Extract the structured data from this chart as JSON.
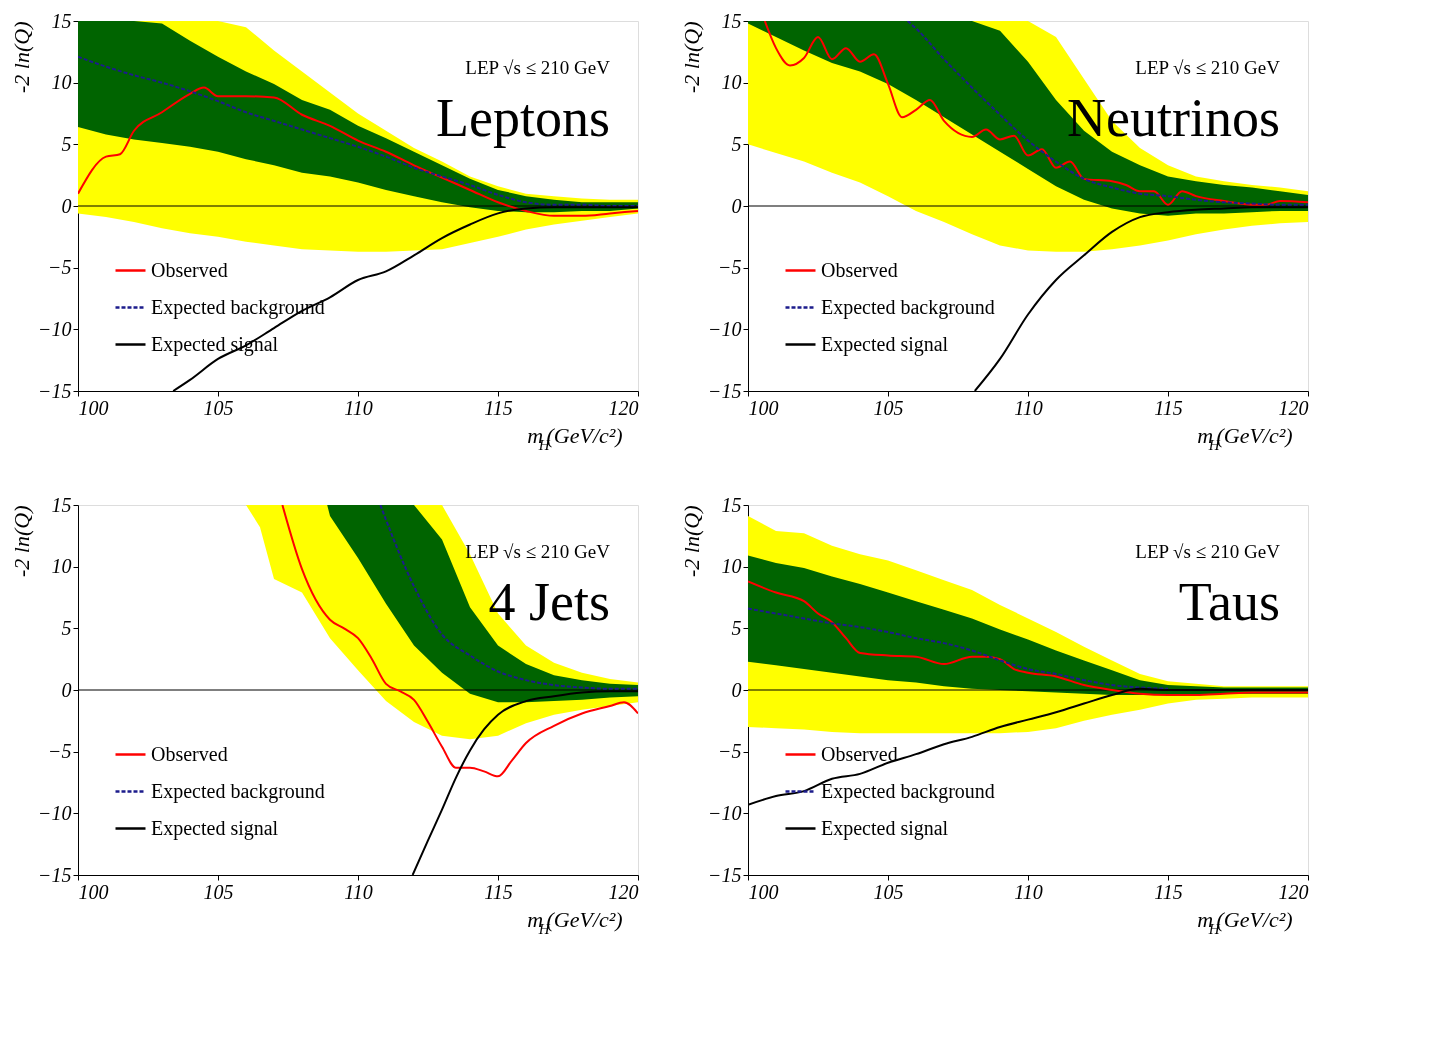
{
  "chart_data": [
    {
      "type": "line",
      "title": "Leptons",
      "annotations": [
        "LEP √s ≤ 210 GeV"
      ],
      "xlabel": "m$_{H}$(GeV/c²)",
      "ylabel": "-2 ln(Q)",
      "xlim": [
        100,
        120
      ],
      "ylim": [
        -15,
        15
      ],
      "xticks": [
        100,
        105,
        110,
        115,
        120
      ],
      "yticks": [
        -15,
        -10,
        -5,
        0,
        5,
        10,
        15
      ],
      "grid": false,
      "legend": "bottom left",
      "marker": "none",
      "x": [
        100,
        101,
        102,
        103,
        104,
        105,
        106,
        107,
        108,
        109,
        110,
        111,
        112,
        113,
        114,
        115,
        116,
        117,
        118,
        119,
        120
      ],
      "ref_lines": [
        {
          "axis": "y",
          "value": 0,
          "color": "#000000"
        }
      ],
      "series": [
        {
          "color": "#ffff00",
          "values": [
            null,
            null,
            null,
            null,
            null,
            null,
            null,
            null,
            null,
            null,
            null,
            null,
            null,
            null,
            null,
            null,
            null,
            null,
            null,
            null,
            null
          ],
          "upper": [
            15,
            15,
            15,
            15,
            15,
            15,
            14.5,
            12.6,
            10.9,
            9.2,
            7.5,
            6.1,
            4.7,
            3.6,
            2.4,
            1.6,
            1.0,
            0.8,
            0.6,
            0.5,
            0.5
          ],
          "lower": [
            -0.6,
            -0.9,
            -1.3,
            -1.8,
            -2.2,
            -2.5,
            -2.9,
            -3.2,
            -3.5,
            -3.6,
            -3.7,
            -3.7,
            -3.6,
            -3.5,
            -3.0,
            -2.5,
            -1.9,
            -1.5,
            -1.2,
            -0.9,
            -0.6
          ]
        },
        {
          "color": "#006400",
          "values": [
            null,
            null,
            null,
            null,
            null,
            null,
            null,
            null,
            null,
            null,
            null,
            null,
            null,
            null,
            null,
            null,
            null,
            null,
            null,
            null,
            null
          ],
          "upper": [
            15,
            15,
            15,
            14.8,
            13.4,
            12.1,
            10.9,
            9.9,
            8.6,
            7.8,
            6.5,
            5.5,
            4.4,
            3.3,
            2.2,
            1.3,
            0.8,
            0.5,
            0.3,
            0.3,
            0.3
          ],
          "lower": [
            6.4,
            5.8,
            5.4,
            5.1,
            4.8,
            4.4,
            3.8,
            3.3,
            2.7,
            2.4,
            1.9,
            1.3,
            0.8,
            0.3,
            -0.1,
            -0.4,
            -0.5,
            -0.5,
            -0.4,
            -0.4,
            -0.2
          ]
        },
        {
          "name": "Observed",
          "color": "#ff0000",
          "line_style": "solid",
          "x": [
            100,
            101,
            101.5,
            102,
            103,
            104,
            104.5,
            105,
            106,
            107,
            108,
            109,
            110,
            111,
            112,
            113,
            114,
            115,
            116,
            117,
            118,
            119,
            120
          ],
          "values": [
            1.0,
            4.0,
            4.2,
            6.1,
            7.6,
            9.1,
            9.6,
            8.9,
            8.9,
            8.8,
            7.4,
            6.5,
            5.3,
            4.4,
            3.3,
            2.3,
            1.3,
            0.3,
            -0.4,
            -0.8,
            -0.8,
            -0.6,
            -0.4
          ]
        },
        {
          "name": "Expected background",
          "color": "#1c1c8c",
          "line_style": "dashed",
          "values": [
            12.1,
            11.3,
            10.6,
            10.0,
            9.3,
            8.5,
            7.6,
            6.9,
            6.2,
            5.5,
            4.8,
            4.0,
            3.1,
            2.4,
            1.7,
            0.9,
            0.3,
            0.1,
            0.1,
            0,
            0
          ]
        },
        {
          "name": "Expected signal",
          "color": "#000000",
          "line_style": "solid",
          "x": [
            103.4,
            104,
            105,
            106,
            107,
            108,
            109,
            110,
            111,
            112,
            113,
            114,
            115,
            116,
            117,
            118,
            119,
            120
          ],
          "values": [
            -15,
            -14.1,
            -12.4,
            -11.3,
            -9.9,
            -8.5,
            -7.4,
            -6.0,
            -5.3,
            -4.0,
            -2.6,
            -1.5,
            -0.6,
            -0.2,
            -0.1,
            -0.1,
            -0.1,
            -0.1
          ]
        }
      ]
    },
    {
      "type": "line",
      "title": "Neutrinos",
      "annotations": [
        "LEP √s ≤ 210 GeV"
      ],
      "xlabel": "m$_{H}$(GeV/c²)",
      "ylabel": "-2 ln(Q)",
      "xlim": [
        100,
        120
      ],
      "ylim": [
        -15,
        15
      ],
      "xticks": [
        100,
        105,
        110,
        115,
        120
      ],
      "yticks": [
        -15,
        -10,
        -5,
        0,
        5,
        10,
        15
      ],
      "grid": false,
      "legend": "bottom left",
      "marker": "none",
      "x": [
        100,
        101,
        102,
        103,
        104,
        105,
        106,
        107,
        108,
        109,
        110,
        111,
        112,
        113,
        114,
        115,
        116,
        117,
        118,
        119,
        120
      ],
      "ref_lines": [
        {
          "axis": "y",
          "value": 0,
          "color": "#000000"
        }
      ],
      "series": [
        {
          "color": "#ffff00",
          "values": [
            null,
            null,
            null,
            null,
            null,
            null,
            null,
            null,
            null,
            null,
            null,
            null,
            null,
            null,
            null,
            null,
            null,
            null,
            null,
            null,
            null
          ],
          "upper": [
            15,
            15,
            15,
            15,
            15,
            15,
            15,
            15,
            15,
            15,
            15,
            13.7,
            10.3,
            6.9,
            4.7,
            3.3,
            2.4,
            2.0,
            1.7,
            1.5,
            1.2
          ],
          "lower": [
            5.0,
            4.3,
            3.6,
            2.7,
            1.9,
            0.8,
            -0.4,
            -1.3,
            -2.3,
            -3.2,
            -3.6,
            -3.7,
            -3.7,
            -3.5,
            -3.2,
            -2.8,
            -2.3,
            -1.9,
            -1.6,
            -1.4,
            -1.3
          ]
        },
        {
          "color": "#006400",
          "values": [
            null,
            null,
            null,
            null,
            null,
            null,
            null,
            null,
            null,
            null,
            null,
            null,
            null,
            null,
            null,
            null,
            null,
            null,
            null,
            null,
            null
          ],
          "upper": [
            15,
            15,
            15,
            15,
            15,
            15,
            15,
            15,
            15,
            14.2,
            11.7,
            8.6,
            6.1,
            4.4,
            3.3,
            2.4,
            2.0,
            1.7,
            1.5,
            1.2,
            0.9
          ],
          "lower": [
            14.8,
            13.7,
            12.6,
            11.6,
            10.9,
            9.9,
            8.6,
            7.2,
            5.8,
            4.4,
            3.0,
            1.6,
            0.5,
            -0.2,
            -0.6,
            -0.8,
            -0.6,
            -0.6,
            -0.5,
            -0.4,
            -0.4
          ]
        },
        {
          "name": "Observed",
          "color": "#ff0000",
          "line_style": "solid",
          "x": [
            100.6,
            101,
            101.5,
            102,
            102.5,
            103,
            103.5,
            104,
            104.5,
            105,
            105.5,
            106,
            106.5,
            107,
            108,
            108.5,
            109,
            109.5,
            110,
            110.5,
            111,
            111.5,
            112,
            113,
            113.5,
            114,
            114.5,
            115,
            115.5,
            116,
            117,
            118,
            118.5,
            119,
            120
          ],
          "values": [
            15,
            12.8,
            11.4,
            12.0,
            13.7,
            11.9,
            12.8,
            11.7,
            12.3,
            9.9,
            7.2,
            7.8,
            8.6,
            6.9,
            5.6,
            6.2,
            5.4,
            5.7,
            4.1,
            4.6,
            3.1,
            3.6,
            2.2,
            2.0,
            1.7,
            1.2,
            1.2,
            0.1,
            1.2,
            0.8,
            0.4,
            0.1,
            0.1,
            0.4,
            0.3
          ]
        },
        {
          "name": "Expected background",
          "color": "#1c1c8c",
          "line_style": "dashed",
          "x": [
            105.7,
            106,
            107,
            108,
            109,
            110,
            111,
            112,
            113,
            114,
            115,
            116,
            117,
            118,
            119,
            120
          ],
          "values": [
            15,
            14.4,
            11.9,
            9.6,
            7.4,
            5.3,
            3.6,
            2.2,
            1.5,
            1.0,
            0.8,
            0.5,
            0.3,
            0.2,
            0.1,
            0.1
          ]
        },
        {
          "name": "Expected signal",
          "color": "#000000",
          "line_style": "solid",
          "x": [
            108.1,
            109,
            110,
            111,
            112,
            113,
            114,
            115,
            116,
            117,
            118,
            119,
            120
          ],
          "values": [
            -15,
            -12.4,
            -8.8,
            -6.0,
            -4.0,
            -2.1,
            -0.9,
            -0.5,
            -0.3,
            -0.2,
            -0.1,
            -0.1,
            -0.1
          ]
        }
      ]
    },
    {
      "type": "line",
      "title": "4 Jets",
      "annotations": [
        "LEP √s ≤ 210 GeV"
      ],
      "xlabel": "m$_{H}$(GeV/c²)",
      "ylabel": "-2 ln(Q)",
      "xlim": [
        100,
        120
      ],
      "ylim": [
        -15,
        15
      ],
      "xticks": [
        100,
        105,
        110,
        115,
        120
      ],
      "yticks": [
        -15,
        -10,
        -5,
        0,
        5,
        10,
        15
      ],
      "grid": false,
      "legend": "bottom left",
      "marker": "none",
      "ref_lines": [
        {
          "axis": "y",
          "value": 0,
          "color": "#000000"
        }
      ],
      "series": [
        {
          "color": "#ffff00",
          "x": [
            106,
            106.5,
            107,
            108,
            109,
            110,
            111,
            112,
            113,
            114,
            115,
            116,
            117,
            118,
            119,
            120
          ],
          "values": [
            null,
            null,
            null,
            null,
            null,
            null,
            null,
            null,
            null,
            null,
            null,
            null,
            null,
            null,
            null,
            null
          ],
          "upper": [
            15,
            15,
            15,
            15,
            15,
            15,
            15,
            15,
            15,
            11.0,
            6.2,
            3.6,
            2.2,
            1.4,
            0.9,
            0.6
          ],
          "lower": [
            15,
            13.2,
            9.0,
            7.9,
            4.2,
            1.6,
            -0.9,
            -2.6,
            -3.7,
            -4.0,
            -3.7,
            -2.7,
            -2.0,
            -1.6,
            -1.3,
            -1.0
          ]
        },
        {
          "color": "#006400",
          "x": [
            108.9,
            109,
            110,
            111,
            112,
            113,
            114,
            115,
            116,
            117,
            118,
            119,
            120
          ],
          "values": [
            null,
            null,
            null,
            null,
            null,
            null,
            null,
            null,
            null,
            null,
            null,
            null,
            null
          ],
          "upper": [
            15,
            15,
            15,
            15,
            15,
            12.2,
            6.7,
            3.6,
            2.1,
            1.2,
            0.8,
            0.5,
            0.4
          ],
          "lower": [
            15,
            14.1,
            10.7,
            7.0,
            3.6,
            1.4,
            -0.3,
            -1.0,
            -1.0,
            -0.9,
            -0.8,
            -0.6,
            -0.5
          ]
        },
        {
          "name": "Observed",
          "color": "#ff0000",
          "line_style": "solid",
          "x": [
            107.3,
            108,
            109,
            109.5,
            110,
            110.5,
            111,
            111.5,
            112,
            112.5,
            113,
            113.5,
            114,
            114.5,
            115,
            115.5,
            116,
            117,
            118,
            119,
            119.5,
            120
          ],
          "values": [
            15,
            9.8,
            5.7,
            5.0,
            4.2,
            2.5,
            0.5,
            -0.1,
            -0.8,
            -2.6,
            -4.6,
            -6.3,
            -6.3,
            -6.6,
            -7.0,
            -5.7,
            -4.3,
            -2.9,
            -1.9,
            -1.3,
            -1.0,
            -1.9
          ]
        },
        {
          "name": "Expected background",
          "color": "#1c1c8c",
          "line_style": "dashed",
          "x": [
            110.8,
            111,
            112,
            113,
            114,
            115,
            116,
            117,
            118,
            119,
            120
          ],
          "values": [
            15,
            13.8,
            8.4,
            4.5,
            2.8,
            1.5,
            0.8,
            0.4,
            0.2,
            0.1,
            0.1
          ]
        },
        {
          "name": "Expected signal",
          "color": "#000000",
          "line_style": "solid",
          "x": [
            111.95,
            112.5,
            113,
            113.5,
            114,
            114.5,
            115,
            116,
            117,
            118,
            119,
            120
          ],
          "values": [
            -15,
            -12.2,
            -9.7,
            -7.1,
            -4.9,
            -3.2,
            -2.0,
            -0.9,
            -0.5,
            -0.2,
            -0.1,
            -0.1
          ]
        }
      ]
    },
    {
      "type": "line",
      "title": "Taus",
      "annotations": [
        "LEP √s ≤ 210 GeV"
      ],
      "xlabel": "m$_{H}$(GeV/c²)",
      "ylabel": "-2 ln(Q)",
      "xlim": [
        100,
        120
      ],
      "ylim": [
        -15,
        15
      ],
      "xticks": [
        100,
        105,
        110,
        115,
        120
      ],
      "yticks": [
        -15,
        -10,
        -5,
        0,
        5,
        10,
        15
      ],
      "grid": false,
      "legend": "bottom left",
      "marker": "none",
      "x": [
        100,
        101,
        102,
        103,
        104,
        105,
        106,
        107,
        108,
        109,
        110,
        111,
        112,
        113,
        114,
        115,
        116,
        117,
        118,
        119,
        120
      ],
      "ref_lines": [
        {
          "axis": "y",
          "value": 0,
          "color": "#000000"
        }
      ],
      "series": [
        {
          "color": "#ffff00",
          "values": [
            null,
            null,
            null,
            null,
            null,
            null,
            null,
            null,
            null,
            null,
            null,
            null,
            null,
            null,
            null,
            null,
            null,
            null,
            null,
            null,
            null
          ],
          "upper": [
            14.1,
            12.9,
            12.7,
            11.7,
            11.0,
            10.5,
            9.7,
            8.9,
            8.1,
            6.9,
            5.8,
            4.7,
            3.5,
            2.4,
            1.3,
            0.7,
            0.5,
            0.3,
            0.3,
            0.3,
            0.3
          ],
          "lower": [
            -3.0,
            -3.1,
            -3.2,
            -3.4,
            -3.5,
            -3.5,
            -3.5,
            -3.5,
            -3.5,
            -3.5,
            -3.4,
            -3.1,
            -2.5,
            -2.0,
            -1.6,
            -1.1,
            -0.8,
            -0.7,
            -0.6,
            -0.6,
            -0.6
          ]
        },
        {
          "color": "#006400",
          "values": [
            null,
            null,
            null,
            null,
            null,
            null,
            null,
            null,
            null,
            null,
            null,
            null,
            null,
            null,
            null,
            null,
            null,
            null,
            null,
            null,
            null
          ],
          "upper": [
            10.9,
            10.3,
            9.9,
            9.2,
            8.6,
            7.9,
            7.2,
            6.5,
            5.8,
            4.9,
            4.1,
            3.2,
            2.4,
            1.6,
            0.8,
            0.4,
            0.3,
            0.2,
            0.2,
            0.2,
            0.2
          ],
          "lower": [
            2.3,
            2.0,
            1.7,
            1.4,
            1.1,
            0.8,
            0.6,
            0.3,
            0.1,
            0,
            -0.1,
            -0.2,
            -0.3,
            -0.4,
            -0.4,
            -0.4,
            -0.4,
            -0.3,
            -0.3,
            -0.3,
            -0.3
          ]
        },
        {
          "name": "Observed",
          "color": "#ff0000",
          "line_style": "solid",
          "x": [
            100,
            101,
            102,
            102.5,
            103,
            103.5,
            104,
            105,
            106,
            107,
            108,
            108.5,
            109,
            109.5,
            110,
            111,
            112,
            113,
            114,
            115,
            116,
            117,
            118,
            119,
            120
          ],
          "values": [
            8.8,
            7.9,
            7.2,
            6.2,
            5.5,
            4.2,
            3.0,
            2.8,
            2.7,
            2.1,
            2.7,
            2.7,
            2.5,
            1.7,
            1.4,
            1.1,
            0.4,
            0,
            -0.3,
            -0.4,
            -0.4,
            -0.3,
            -0.2,
            -0.2,
            -0.2
          ]
        },
        {
          "name": "Expected background",
          "color": "#1c1c8c",
          "line_style": "dashed",
          "values": [
            6.6,
            6.2,
            5.8,
            5.4,
            5.1,
            4.7,
            4.2,
            3.8,
            3.2,
            2.4,
            1.7,
            1.3,
            0.8,
            0.4,
            0.2,
            0.1,
            null,
            null,
            null,
            null,
            null
          ]
        },
        {
          "name": "Expected signal",
          "color": "#000000",
          "line_style": "solid",
          "values": [
            -9.3,
            -8.6,
            -8.2,
            -7.2,
            -6.8,
            -5.9,
            -5.2,
            -4.4,
            -3.8,
            -3.0,
            -2.4,
            -1.8,
            -1.1,
            -0.4,
            0.1,
            0,
            0,
            0,
            0,
            0,
            0
          ]
        }
      ]
    }
  ]
}
